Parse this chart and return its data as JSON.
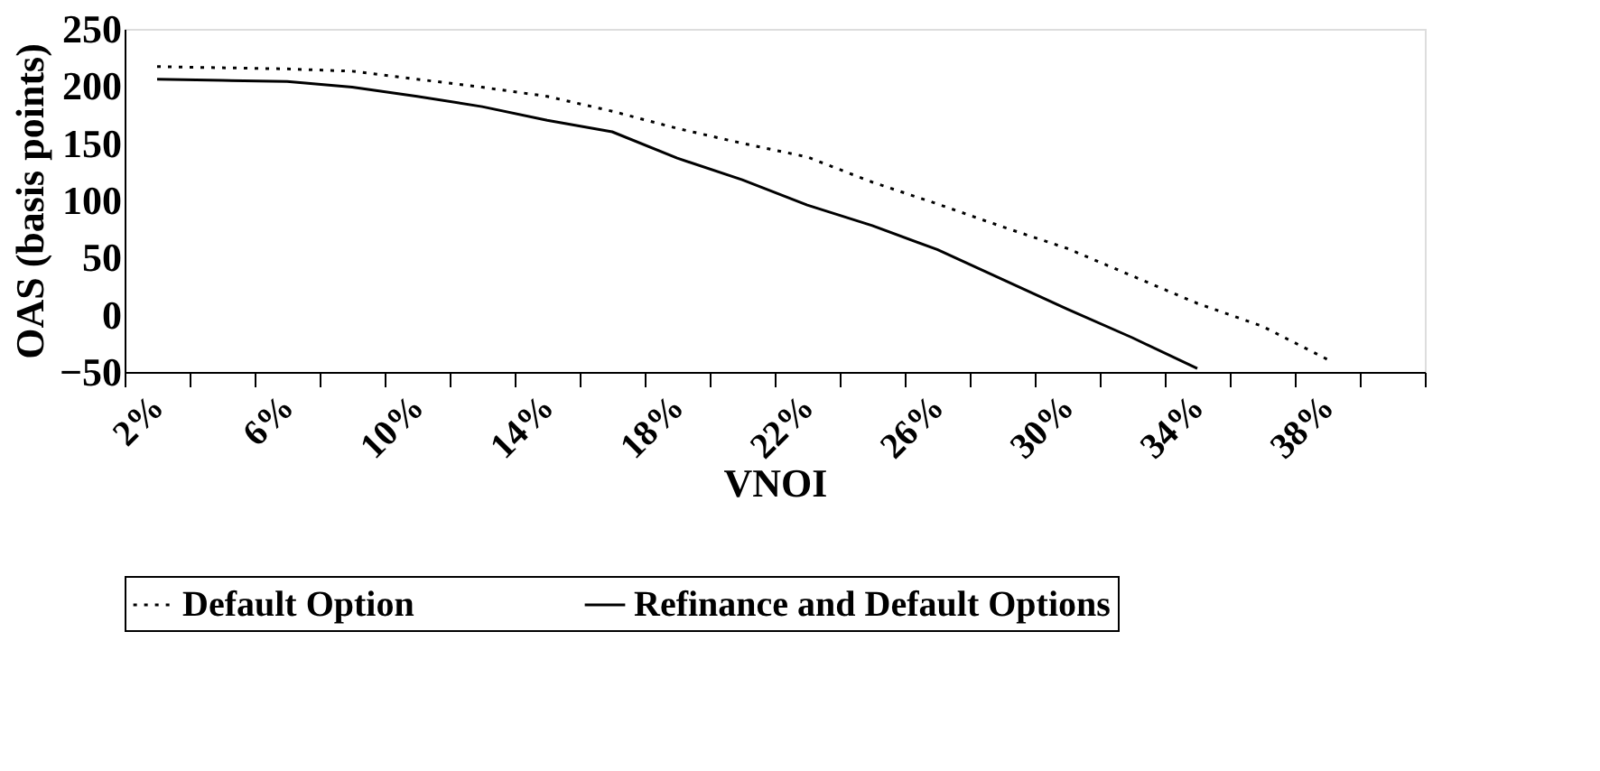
{
  "chart_data": {
    "type": "line",
    "xlabel": "VNOI",
    "ylabel": "OAS (basis points)",
    "categories": [
      "2%",
      null,
      "6%",
      null,
      "10%",
      null,
      "14%",
      null,
      "18%",
      null,
      "22%",
      null,
      "26%",
      null,
      "30%",
      null,
      "34%",
      null,
      "38%",
      null
    ],
    "series": [
      {
        "name": "Default Option",
        "color": "#000000",
        "line_style": "dotted",
        "values": [
          217,
          216,
          215,
          213,
          206,
          199,
          191,
          178,
          163,
          150,
          138,
          116,
          97,
          77,
          58,
          34,
          10,
          -10,
          -39,
          null
        ]
      },
      {
        "name": "Refinance and Default Options",
        "color": "#000000",
        "line_style": "solid",
        "values": [
          206,
          205,
          204,
          199,
          191,
          182,
          170,
          160,
          137,
          118,
          96,
          78,
          57,
          31,
          5,
          -20,
          -47,
          null,
          null,
          null
        ]
      }
    ],
    "ylim": [
      -50,
      250
    ],
    "yticks": [
      -50,
      0,
      50,
      100,
      150,
      200,
      250
    ],
    "grid": false,
    "legend": "bottom",
    "marker": "none"
  }
}
